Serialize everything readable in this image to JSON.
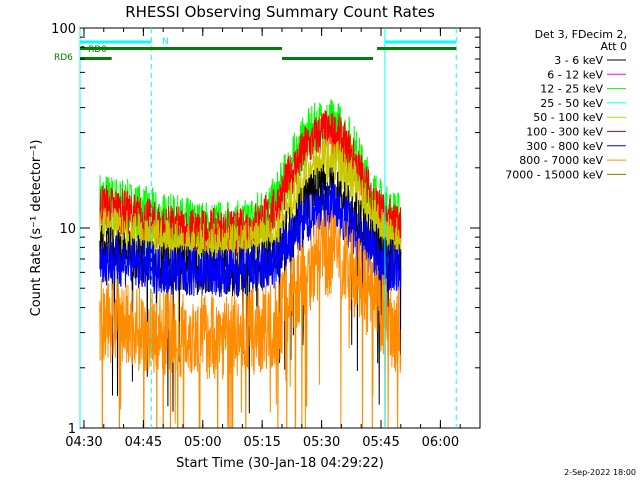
{
  "chart_data": {
    "type": "line",
    "title": "RHESSI Observing Summary Count Rates",
    "xlabel": "Start Time (30-Jan-18 04:29:22)",
    "ylabel": "Count Rate (s⁻¹ detector⁻¹)",
    "yscale": "log",
    "ylim": [
      1,
      100
    ],
    "xlim": [
      "04:29",
      "06:10"
    ],
    "x_ticks": [
      "04:30",
      "04:45",
      "05:00",
      "05:15",
      "05:30",
      "05:45",
      "06:00"
    ],
    "y_ticks": [
      "1",
      "10",
      "100"
    ],
    "data_start": "04:34",
    "data_end": "05:50",
    "legend": {
      "placement": "right",
      "header": [
        "Det 3, FDecim 2,",
        "Att 0"
      ],
      "entries": [
        {
          "label": "3 - 6 keV",
          "color": "#000000"
        },
        {
          "label": "6 - 12 keV",
          "color": "#ff00ff"
        },
        {
          "label": "12 - 25 keV",
          "color": "#00ff00"
        },
        {
          "label": "25 - 50 keV",
          "color": "#00ffff"
        },
        {
          "label": "50 - 100 keV",
          "color": "#c8c800"
        },
        {
          "label": "100 - 300 keV",
          "color": "#ff0000"
        },
        {
          "label": "300 - 800 keV",
          "color": "#0000ff"
        },
        {
          "label": "800 - 7000 keV",
          "color": "#ff8c00"
        },
        {
          "label": "7000 - 15000 keV",
          "color": "#808000"
        }
      ]
    },
    "series": [
      {
        "band": "12 - 25 keV",
        "color": "#00ff00",
        "x": [
          "04:34",
          "04:40",
          "04:50",
          "05:00",
          "05:10",
          "05:18",
          "05:22",
          "05:26",
          "05:30",
          "05:34",
          "05:38",
          "05:42",
          "05:46",
          "05:50"
        ],
        "y": [
          14,
          13,
          11,
          10,
          10,
          13,
          20,
          28,
          33,
          32,
          25,
          16,
          12,
          11
        ]
      },
      {
        "band": "100 - 300 keV",
        "color": "#ff0000",
        "x": [
          "04:34",
          "04:40",
          "04:50",
          "05:00",
          "05:10",
          "05:18",
          "05:22",
          "05:26",
          "05:30",
          "05:34",
          "05:38",
          "05:42",
          "05:46",
          "05:50"
        ],
        "y": [
          13,
          12,
          10,
          9.5,
          9.5,
          12,
          18,
          25,
          30,
          29,
          22,
          15,
          11,
          10
        ]
      },
      {
        "band": "50 - 100 keV",
        "color": "#c8c800",
        "x": [
          "04:34",
          "04:40",
          "04:50",
          "05:00",
          "05:10",
          "05:18",
          "05:22",
          "05:26",
          "05:30",
          "05:34",
          "05:38",
          "05:42",
          "05:46",
          "05:50"
        ],
        "y": [
          10,
          9.5,
          8.5,
          8,
          8,
          9,
          13,
          18,
          22,
          21,
          17,
          12,
          9,
          8.5
        ]
      },
      {
        "band": "3 - 6 keV",
        "color": "#000000",
        "x": [
          "04:34",
          "04:40",
          "04:50",
          "05:00",
          "05:10",
          "05:18",
          "05:22",
          "05:26",
          "05:30",
          "05:34",
          "05:38",
          "05:42",
          "05:46",
          "05:50"
        ],
        "y": [
          8,
          7.5,
          6.5,
          6,
          6,
          7,
          10,
          14,
          16,
          15,
          12,
          9,
          7,
          6.5
        ]
      },
      {
        "band": "300 - 800 keV",
        "color": "#0000ff",
        "x": [
          "04:34",
          "04:40",
          "04:50",
          "05:00",
          "05:10",
          "05:18",
          "05:22",
          "05:26",
          "05:30",
          "05:34",
          "05:38",
          "05:42",
          "05:46",
          "05:50"
        ],
        "y": [
          7,
          6.8,
          6.2,
          6,
          6,
          6.5,
          8.5,
          11,
          13,
          12.5,
          10,
          8,
          6.5,
          6
        ]
      },
      {
        "band": "800 - 7000 keV",
        "color": "#ff8c00",
        "x": [
          "04:34",
          "04:40",
          "04:50",
          "05:00",
          "05:10",
          "05:18",
          "05:22",
          "05:26",
          "05:30",
          "05:34",
          "05:38",
          "05:42",
          "05:46",
          "05:50"
        ],
        "y": [
          3.5,
          3.3,
          3,
          2.9,
          2.9,
          3.2,
          4.5,
          6,
          7.5,
          7.5,
          6,
          4.5,
          3.5,
          3
        ]
      }
    ],
    "annotations": {
      "upper_bar_label": "N",
      "lower_bar_labels": [
        "RD0",
        "RD6"
      ]
    },
    "cyan_vlines_solid": [
      "04:29",
      "05:46"
    ],
    "cyan_vlines_dashed": [
      "04:47",
      "06:04"
    ],
    "cyan_bar": [
      [
        "04:29",
        "04:47"
      ],
      [
        "05:46",
        "06:04"
      ]
    ],
    "green_bar_upper": [
      [
        "04:29",
        "05:20"
      ],
      [
        "05:44",
        "06:04"
      ]
    ],
    "green_bar_lower": [
      [
        "04:29",
        "04:37"
      ],
      [
        "05:20",
        "05:43"
      ]
    ]
  },
  "footer": {
    "date": "2-Sep-2022 18:00"
  },
  "colors": {
    "background": "#ffffff",
    "axis": "#000000",
    "cyan": "#00ffff",
    "green": "#008000"
  }
}
